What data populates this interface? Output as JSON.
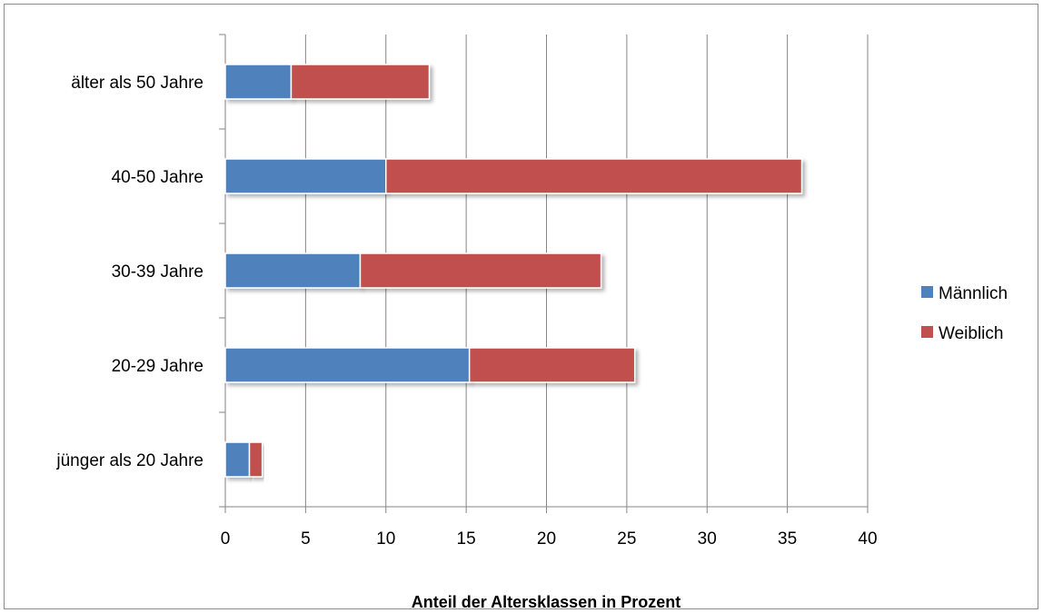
{
  "chart_data": {
    "type": "bar",
    "orientation": "horizontal",
    "stacked": true,
    "categories": [
      "jünger als 20 Jahre",
      "20-29 Jahre",
      "30-39 Jahre",
      "40-50 Jahre",
      "älter als 50 Jahre"
    ],
    "series": [
      {
        "name": "Männlich",
        "color": "#4f81bd",
        "values": [
          1.5,
          15.2,
          8.4,
          10.0,
          4.1
        ]
      },
      {
        "name": "Weiblich",
        "color": "#c0504d",
        "values": [
          0.8,
          10.3,
          15.0,
          25.9,
          8.6
        ]
      }
    ],
    "xlabel": "Anteil der Altersklassen in Prozent",
    "xlim": [
      0,
      40
    ],
    "xticks": [
      "0",
      "5",
      "10",
      "15",
      "20",
      "25",
      "30",
      "35",
      "40"
    ],
    "grid": "vertical",
    "legend": "right"
  }
}
